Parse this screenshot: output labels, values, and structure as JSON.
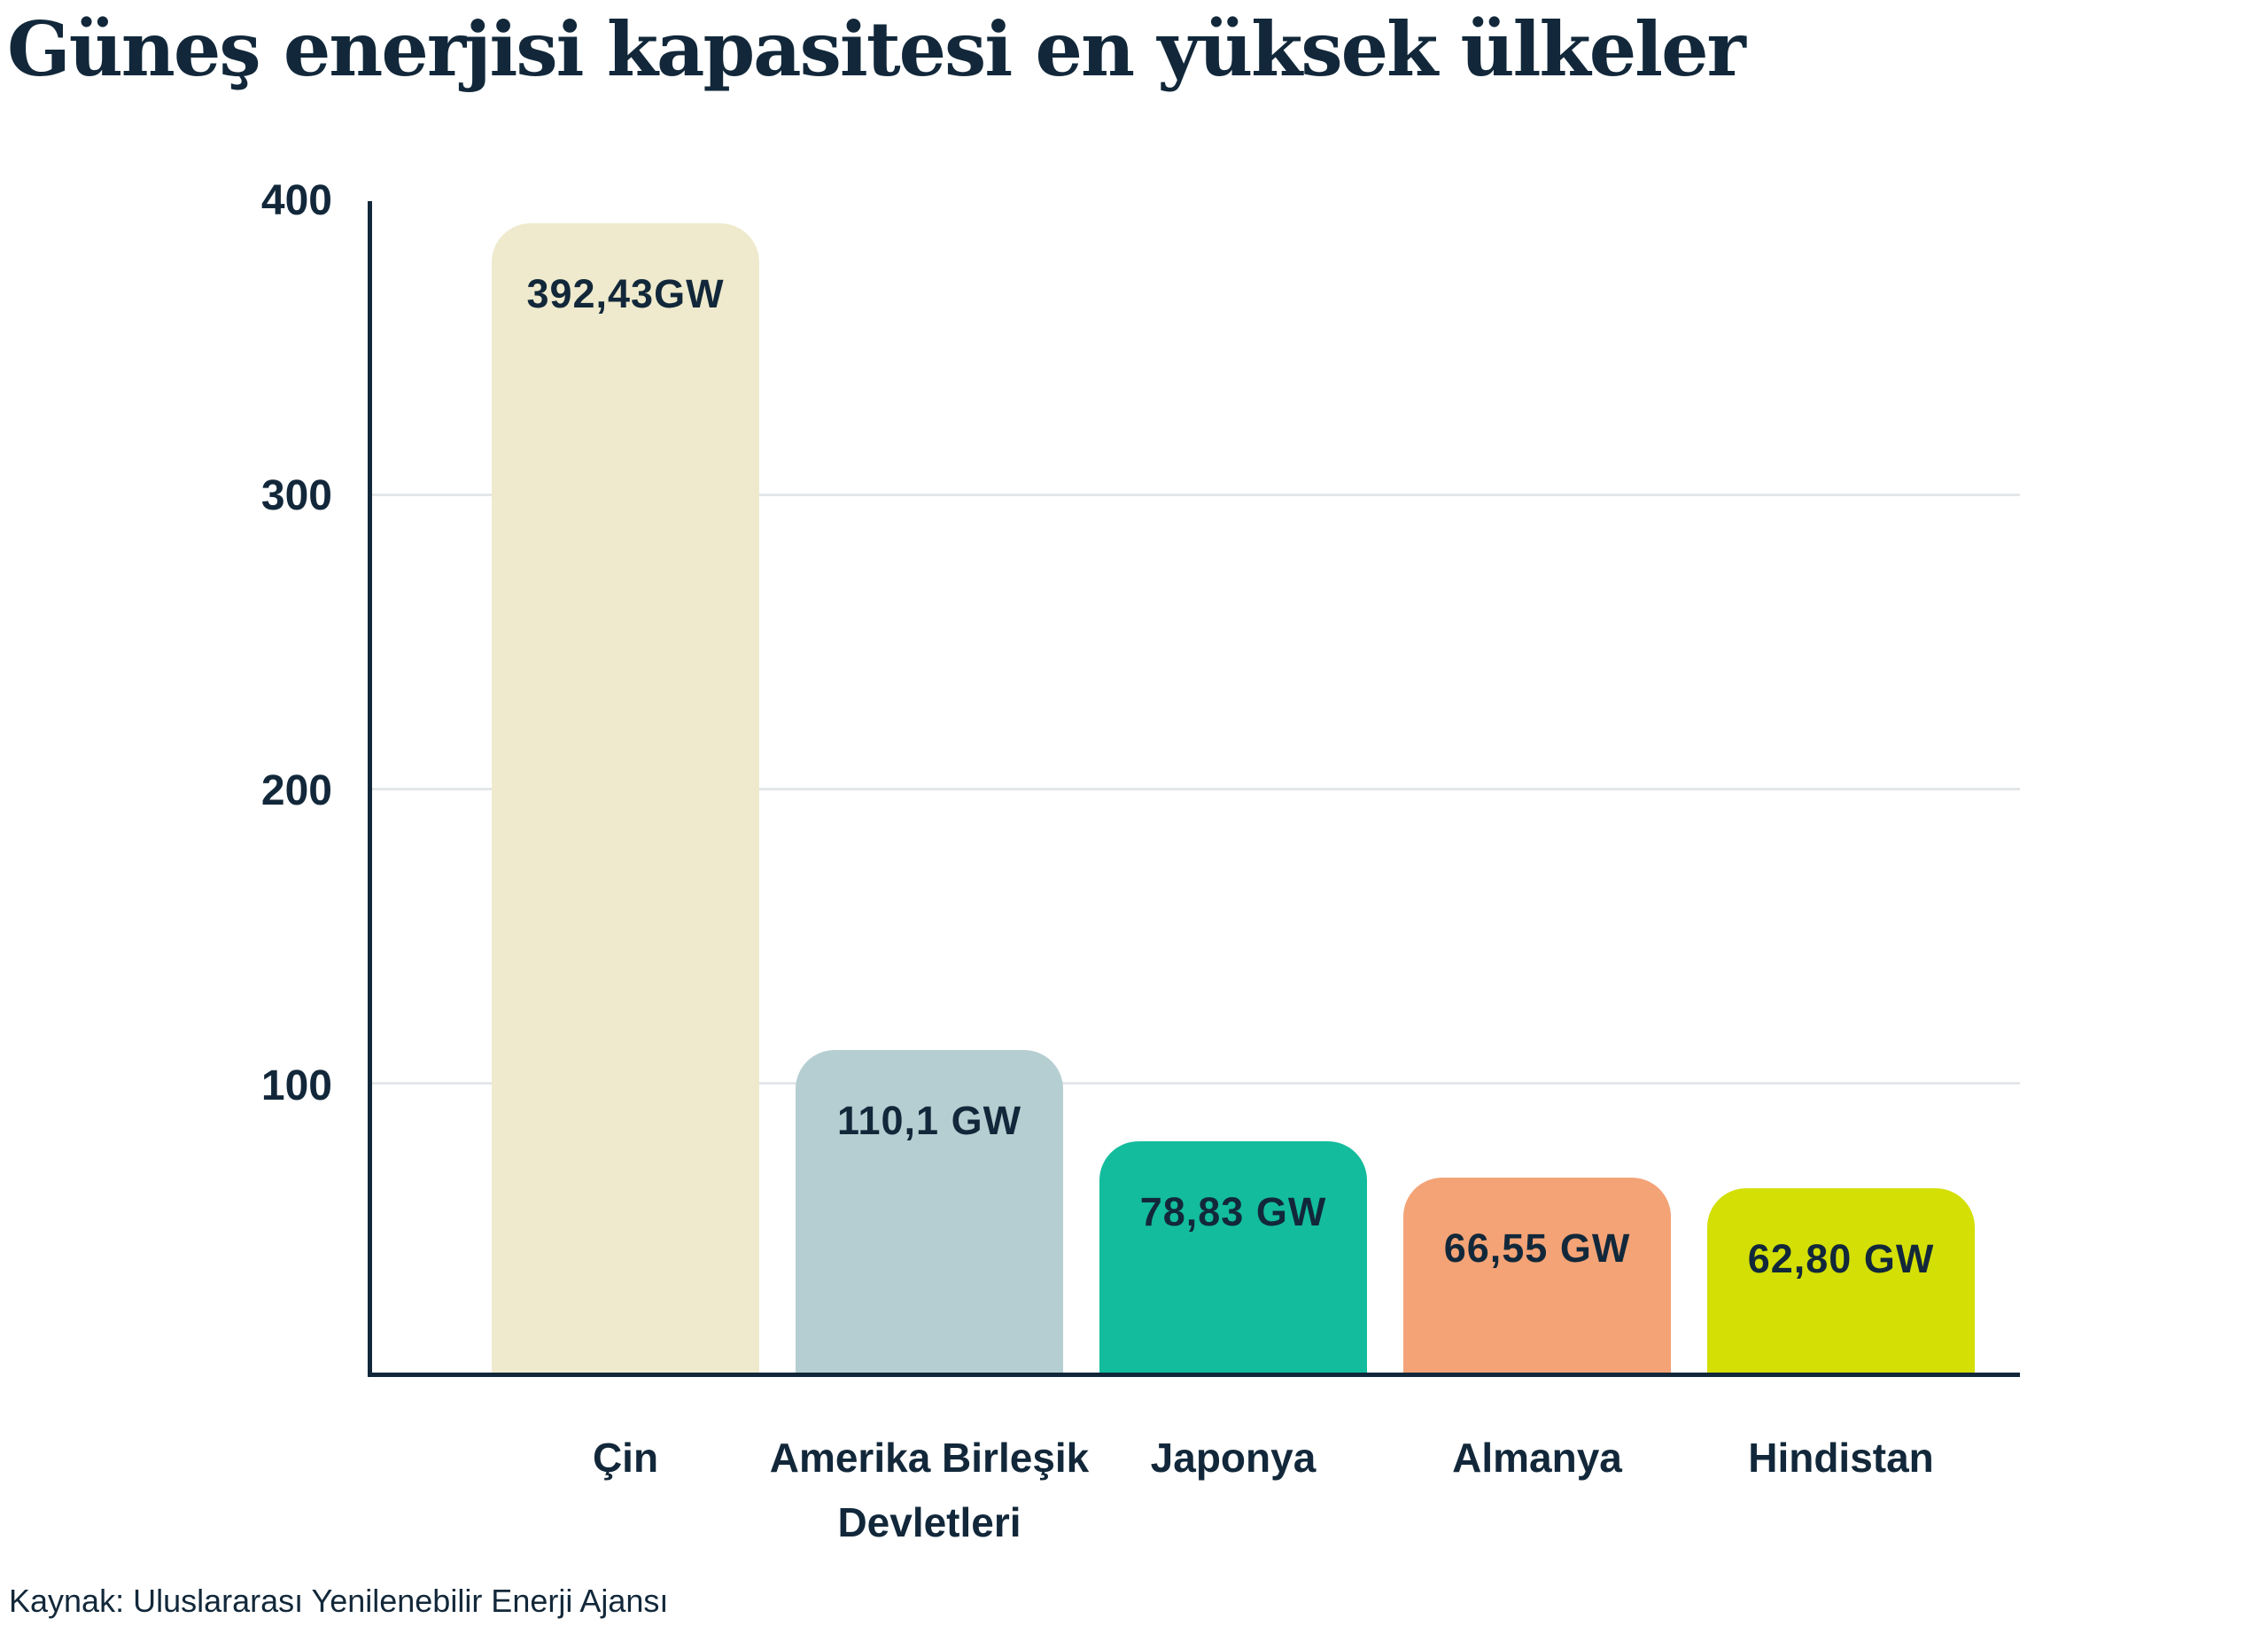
{
  "chart_data": {
    "type": "bar",
    "title": "Güneş enerjisi kapasitesi en yüksek ülkeler",
    "source": "Kaynak: Uluslararası Yenilenebilir Enerji Ajansı",
    "unit": "GW",
    "ylim": [
      0,
      400
    ],
    "yticks": [
      "400",
      "300",
      "200",
      "100"
    ],
    "grid": "horizontal lines at 100, 200, 300",
    "legend": "none",
    "categories": [
      "Çin",
      "Amerika Birleşik Devletleri",
      "Japonya",
      "Almanya",
      "Hindistan"
    ],
    "values": [
      392.43,
      110.1,
      78.83,
      66.55,
      62.8
    ],
    "bars": [
      {
        "country": "Çin",
        "value": 392.43,
        "value_label": "392,43GW",
        "color": "#EFEACD",
        "axis_label_line1": "Çin",
        "axis_label_line2": ""
      },
      {
        "country": "Amerika Birleşik Devletleri",
        "value": 110.1,
        "value_label": "110,1 GW",
        "color": "#B5CED1",
        "axis_label_line1": "Amerika Birleşik",
        "axis_label_line2": "Devletleri"
      },
      {
        "country": "Japonya",
        "value": 78.83,
        "value_label": "78,83 GW",
        "color": "#13BC9C",
        "axis_label_line1": "Japonya",
        "axis_label_line2": ""
      },
      {
        "country": "Almanya",
        "value": 66.55,
        "value_label": "66,55 GW",
        "color": "#F4A376",
        "axis_label_line1": "Almanya",
        "axis_label_line2": ""
      },
      {
        "country": "Hindistan",
        "value": 62.8,
        "value_label": "62,80 GW",
        "color": "#D3DF05",
        "axis_label_line1": "Hindistan",
        "axis_label_line2": ""
      }
    ],
    "colors": {
      "text_navy": "#12283A",
      "axis_navy": "#12283A",
      "gridline_gray": "#E3E7E9",
      "background": "#FFFFFF"
    }
  }
}
